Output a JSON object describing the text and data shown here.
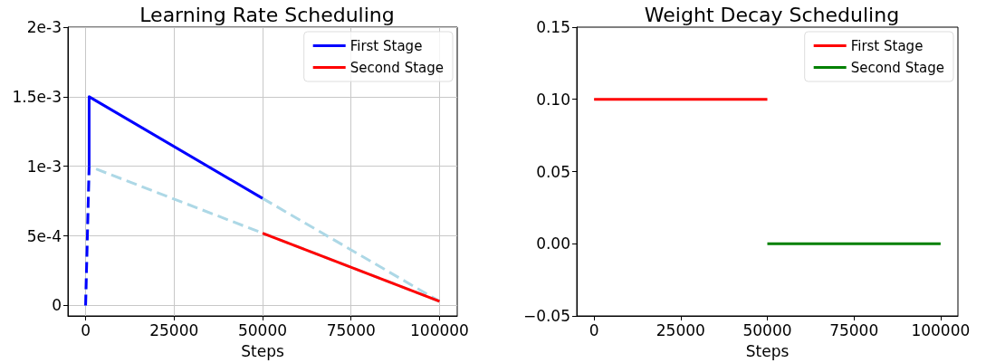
{
  "chart_data": [
    {
      "type": "line",
      "title": "Learning Rate Scheduling",
      "xlabel": "Steps",
      "xlim": [
        -5000,
        105000
      ],
      "xticks": [
        0,
        25000,
        50000,
        75000,
        100000
      ],
      "ylim": [
        -7.5e-05,
        0.002
      ],
      "yticks": [
        {
          "value": 0,
          "label": "0"
        },
        {
          "value": 0.0005,
          "label": "5e-4"
        },
        {
          "value": 0.001,
          "label": "1e-3"
        },
        {
          "value": 0.0015,
          "label": "1.5e-3"
        },
        {
          "value": 0.002,
          "label": "2e-3"
        }
      ],
      "grid": true,
      "legend": "top right",
      "marker": "none",
      "series": [
        {
          "color": "#add8e6",
          "line_style": "dashed",
          "x": [
            0,
            1000,
            100000
          ],
          "values": [
            0,
            0.001,
            3e-05
          ]
        },
        {
          "color": "#add8e6",
          "line_style": "dashed",
          "x": [
            50000,
            100000
          ],
          "values": [
            0.00077,
            3e-05
          ]
        },
        {
          "color": "#0000ff",
          "line_style": "dashed",
          "x": [
            0,
            1000
          ],
          "values": [
            0,
            0.001
          ]
        },
        {
          "name": "First Stage",
          "color": "#0000ff",
          "line_style": "solid",
          "x": [
            1000,
            1000,
            50000
          ],
          "values": [
            0.001,
            0.0015,
            0.00077
          ]
        },
        {
          "name": "Second Stage",
          "color": "#ff0000",
          "line_style": "solid",
          "x": [
            50000,
            100000
          ],
          "values": [
            0.00052,
            3e-05
          ]
        }
      ]
    },
    {
      "type": "line",
      "title": "Weight Decay Scheduling",
      "xlabel": "Steps",
      "xlim": [
        -5000,
        105000
      ],
      "xticks": [
        0,
        25000,
        50000,
        75000,
        100000
      ],
      "ylim": [
        -0.05,
        0.15
      ],
      "yticks": [
        {
          "value": -0.05,
          "label": "−0.05"
        },
        {
          "value": 0,
          "label": "0.00"
        },
        {
          "value": 0.05,
          "label": "0.05"
        },
        {
          "value": 0.1,
          "label": "0.10"
        },
        {
          "value": 0.15,
          "label": "0.15"
        }
      ],
      "grid": false,
      "legend": "top right",
      "marker": "none",
      "series": [
        {
          "name": "First Stage",
          "color": "#ff0000",
          "line_style": "solid",
          "x": [
            0,
            50000
          ],
          "values": [
            0.1,
            0.1
          ]
        },
        {
          "name": "Second Stage",
          "color": "#008000",
          "line_style": "solid",
          "x": [
            50000,
            100000
          ],
          "values": [
            0,
            0
          ]
        }
      ]
    }
  ]
}
